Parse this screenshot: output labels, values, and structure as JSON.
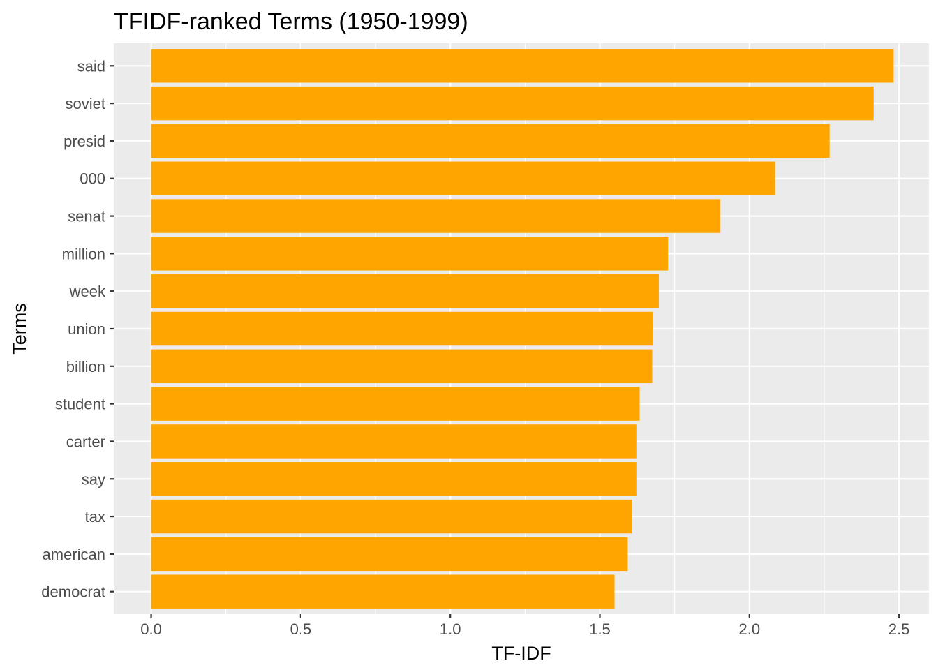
{
  "chart_data": {
    "type": "bar",
    "orientation": "horizontal",
    "title": "TFIDF-ranked Terms (1950-1999)",
    "xlabel": "TF-IDF",
    "ylabel": "Terms",
    "categories": [
      "said",
      "soviet",
      "presid",
      "000",
      "senat",
      "million",
      "week",
      "union",
      "billion",
      "student",
      "carter",
      "say",
      "tax",
      "american",
      "democrat"
    ],
    "values": [
      2.482,
      2.415,
      2.268,
      2.086,
      1.903,
      1.728,
      1.697,
      1.678,
      1.675,
      1.633,
      1.622,
      1.622,
      1.607,
      1.593,
      1.549
    ],
    "xlim": [
      -0.125,
      2.6
    ],
    "xticks": [
      "0.0",
      "0.5",
      "1.0",
      "1.5",
      "2.0",
      "2.5"
    ],
    "bar_color": "#FFA500",
    "panel_background": "#EBEBEB",
    "grid_color": "#FFFFFF",
    "grid": true,
    "legend": "none"
  }
}
